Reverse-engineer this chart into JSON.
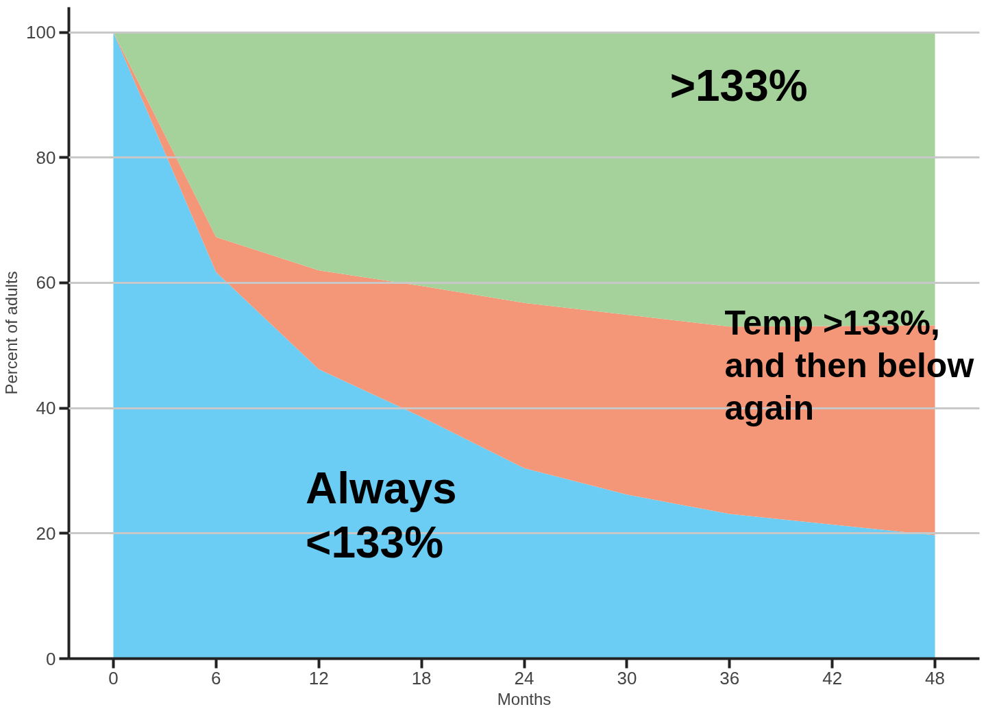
{
  "chart_data": {
    "type": "area",
    "stacked": true,
    "xlabel": "Months",
    "ylabel": "Percent of adults",
    "x": [
      0,
      6,
      12,
      18,
      24,
      30,
      36,
      42,
      48
    ],
    "series": [
      {
        "color": "#6bcdf3",
        "values": [
          100,
          61.7,
          46.2,
          38.6,
          30.4,
          26.2,
          23.1,
          21.4,
          19.7
        ]
      },
      {
        "color": "#f39778",
        "values": [
          0,
          5.6,
          15.8,
          20.9,
          26.4,
          28.7,
          29.9,
          31.7,
          33.5
        ]
      },
      {
        "color": "#a4d29a",
        "values": [
          0,
          32.7,
          38.0,
          40.5,
          43.2,
          45.1,
          47.0,
          46.9,
          46.8
        ]
      }
    ],
    "xlim": [
      -2.6,
      50.6
    ],
    "ylim": [
      0,
      104
    ],
    "xticks": [
      0,
      6,
      12,
      18,
      24,
      30,
      36,
      42,
      48
    ],
    "yticks": [
      0,
      20,
      40,
      60,
      80,
      100
    ],
    "grid": "y",
    "annotations": [
      ">133%",
      "Temp >133%,\nand then below\nagain",
      "Always\n<133%"
    ]
  }
}
